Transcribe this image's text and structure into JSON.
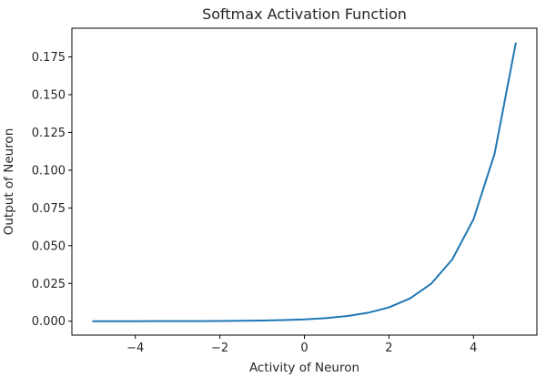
{
  "chart_data": {
    "type": "line",
    "title": "Softmax Activation Function",
    "xlabel": "Activity of Neuron",
    "ylabel": "Output of Neuron",
    "xlim": [
      -5.5,
      5.5
    ],
    "ylim": [
      -0.0092,
      0.194
    ],
    "x_ticks": [
      -4,
      -2,
      0,
      2,
      4
    ],
    "x_tick_labels": [
      "−4",
      "−2",
      "0",
      "2",
      "4"
    ],
    "y_ticks": [
      0.0,
      0.025,
      0.05,
      0.075,
      0.1,
      0.125,
      0.15,
      0.175
    ],
    "y_tick_labels": [
      "0.000",
      "0.025",
      "0.050",
      "0.075",
      "0.100",
      "0.125",
      "0.150",
      "0.175"
    ],
    "grid": false,
    "series": [
      {
        "color": "#1f77b4",
        "x": [
          -5,
          -4.5,
          -4,
          -3.5,
          -3,
          -2.5,
          -2,
          -1.5,
          -1,
          -0.5,
          0,
          0.5,
          1,
          1.5,
          2,
          2.5,
          3,
          3.5,
          4,
          4.5,
          5
        ],
        "y": [
          8.3e-06,
          1.37e-05,
          2.26e-05,
          3.73e-05,
          6.15e-05,
          0.000101,
          0.000167,
          0.000276,
          0.000454,
          0.000749,
          0.00124,
          0.00204,
          0.00336,
          0.00554,
          0.00914,
          0.0151,
          0.0248,
          0.041,
          0.0675,
          0.111,
          0.184
        ]
      }
    ]
  }
}
